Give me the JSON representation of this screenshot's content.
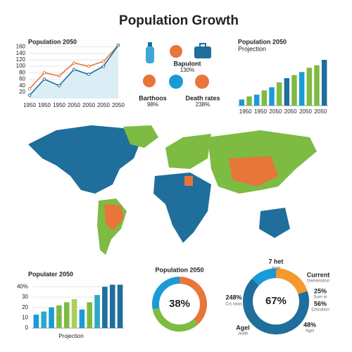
{
  "title": "Population Growth",
  "icons": [
    {
      "label": "Bapulont",
      "sub": "130%"
    },
    {
      "label": "Barthoos",
      "sub": "98%"
    },
    {
      "label": "Death rates",
      "sub": "238%"
    }
  ],
  "chart_data": [
    {
      "type": "line",
      "title": "Population 2050",
      "categories": [
        "1950",
        "1950",
        "1950",
        "2050",
        "2050",
        "2050",
        "2050"
      ],
      "series": [
        {
          "name": null,
          "color": "#e8753a",
          "values": [
            30,
            80,
            70,
            110,
            100,
            115,
            165
          ]
        },
        {
          "name": null,
          "color": "#1f6e9c",
          "values": [
            10,
            60,
            40,
            90,
            75,
            100,
            165
          ]
        }
      ],
      "area_color": "#dbeef6",
      "ylim": [
        0,
        170
      ],
      "yticks": [
        20,
        40,
        60,
        80,
        100,
        120,
        140,
        160
      ]
    },
    {
      "type": "bar",
      "title": "Population 2050",
      "subtitle": "Projection",
      "categories": [
        "1950",
        null,
        "1950",
        null,
        "2050",
        null,
        "2050",
        null,
        "2050",
        null,
        "2050",
        null
      ],
      "values": [
        10,
        15,
        18,
        25,
        30,
        38,
        45,
        50,
        55,
        62,
        66,
        75
      ],
      "colors": [
        "#1a9ad6",
        "#7dbb42",
        "#1a9ad6",
        "#7dbb42",
        "#1a9ad6",
        "#7dbb42",
        "#1f6e9c",
        "#7dbb42",
        "#1a9ad6",
        "#7dbb42",
        "#7dbb42",
        "#1f6e9c"
      ]
    },
    {
      "type": "bar",
      "title": "Populater 2050",
      "xlabel": "Projection",
      "values": [
        13,
        16,
        20,
        22,
        25,
        28,
        18,
        25,
        32,
        40,
        42,
        42
      ],
      "colors": [
        "#1a9ad6",
        "#2aa9c9",
        "#1a9ad6",
        "#7dbb42",
        "#7dbb42",
        "#a9d05c",
        "#1a9ad6",
        "#7dbb42",
        "#2aa9c9",
        "#1f6e9c",
        "#1f6e9c",
        "#1f6e9c"
      ],
      "ylim": [
        0,
        45
      ],
      "yticks": [
        0,
        10,
        20,
        30,
        {
          "value": 40,
          "label": "40%"
        }
      ]
    },
    {
      "type": "donut",
      "title": "Population 2050",
      "values": [
        38,
        34,
        28
      ],
      "colors": [
        "#e8753a",
        "#7dbb42",
        "#1a9ad6"
      ],
      "center": {
        "value": 38,
        "label": "38%"
      }
    },
    {
      "type": "donut",
      "values": [
        20,
        67,
        13
      ],
      "colors": [
        "#f39a2e",
        "#1f6e9c",
        "#1a9ad6"
      ],
      "center": {
        "value": 67,
        "label": "67%"
      },
      "annotations": [
        "7 het",
        "Agel",
        "Current",
        "Demonstion",
        "25%",
        "Som m",
        "56%",
        "Cmcation",
        "248%",
        "Crc lotas",
        "Agel",
        "Jeath",
        "48%",
        "Agel"
      ]
    }
  ]
}
